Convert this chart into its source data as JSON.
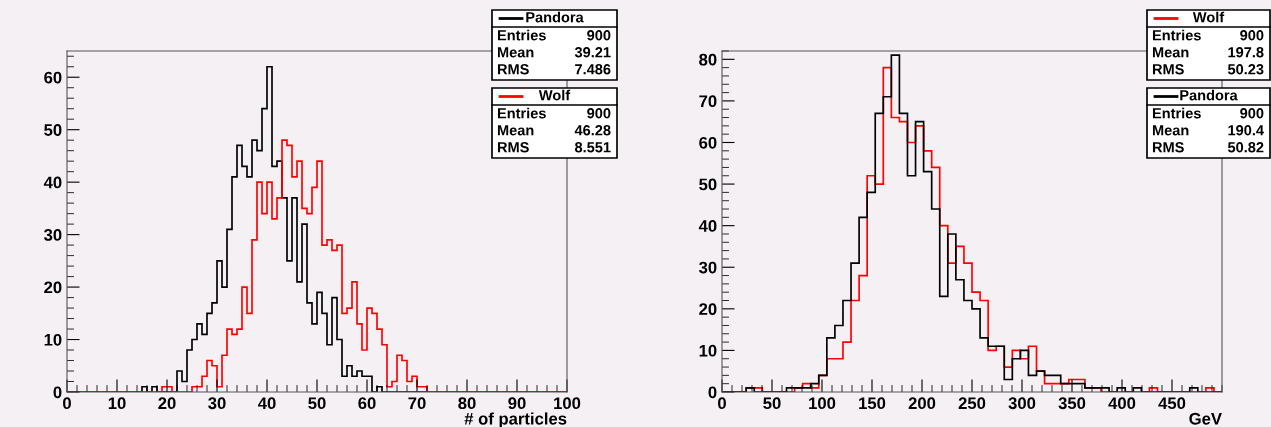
{
  "chart_data": [
    {
      "type": "histogram",
      "xlabel": "# of particles",
      "xlim": [
        0,
        100
      ],
      "xticks": [
        0,
        10,
        20,
        30,
        40,
        50,
        60,
        70,
        80,
        90,
        100
      ],
      "ylim": [
        0,
        65
      ],
      "yticks": [
        0,
        10,
        20,
        30,
        40,
        50,
        60
      ],
      "legend": "top right",
      "bins": [
        0,
        1,
        2,
        3,
        4,
        5,
        6,
        7,
        8,
        9,
        10,
        11,
        12,
        13,
        14,
        15,
        16,
        17,
        18,
        19,
        20,
        21,
        22,
        23,
        24,
        25,
        26,
        27,
        28,
        29,
        30,
        31,
        32,
        33,
        34,
        35,
        36,
        37,
        38,
        39,
        40,
        41,
        42,
        43,
        44,
        45,
        46,
        47,
        48,
        49,
        50,
        51,
        52,
        53,
        54,
        55,
        56,
        57,
        58,
        59,
        60,
        61,
        62,
        63,
        64,
        65,
        66,
        67,
        68,
        69,
        70,
        71,
        72,
        73,
        74,
        75,
        76,
        77,
        78,
        79,
        80,
        81,
        82,
        83,
        84,
        85,
        86,
        87,
        88,
        89,
        90,
        91,
        92,
        93,
        94,
        95,
        96,
        97,
        98,
        99,
        100
      ],
      "series": [
        {
          "name": "Pandora",
          "color": "#000000",
          "values": [
            0,
            0,
            0,
            0,
            0,
            0,
            0,
            0,
            0,
            0,
            0,
            0,
            0,
            0,
            0,
            1,
            0,
            1,
            0,
            0,
            0,
            0,
            4,
            2,
            8,
            10,
            13,
            11,
            15,
            17,
            25,
            20,
            31,
            41,
            47,
            43,
            41,
            48,
            46,
            54,
            62,
            43,
            44,
            37,
            25,
            37,
            21,
            32,
            17,
            13,
            19,
            15,
            9,
            18,
            10,
            3,
            5,
            3,
            4,
            3,
            3,
            0,
            1,
            0,
            0,
            0,
            0,
            0,
            0,
            0,
            0,
            0,
            0,
            0,
            0,
            0,
            0,
            0,
            0,
            0,
            0,
            0,
            0,
            0,
            0,
            0,
            0,
            0,
            0,
            0,
            0,
            0,
            0,
            0,
            0,
            0,
            0,
            0,
            0,
            0
          ]
        },
        {
          "name": "Wolf",
          "color": "#ff0000",
          "values": [
            0,
            0,
            0,
            0,
            0,
            0,
            0,
            0,
            0,
            0,
            0,
            0,
            0,
            0,
            0,
            0,
            0,
            0,
            0,
            1,
            1,
            0,
            0,
            0,
            0,
            1,
            1,
            3,
            6,
            5,
            1,
            7,
            12,
            11,
            12,
            20,
            15,
            29,
            40,
            34,
            40,
            33,
            37,
            48,
            47,
            41,
            44,
            35,
            34,
            39,
            44,
            28,
            29,
            27,
            28,
            15,
            16,
            21,
            13,
            8,
            16,
            15,
            12,
            9,
            1,
            2,
            7,
            6,
            2,
            3,
            1,
            1,
            0,
            0,
            0,
            0,
            0,
            0,
            0,
            0,
            0,
            0,
            0,
            0,
            0,
            0,
            0,
            0,
            0,
            0,
            0,
            0,
            0,
            0,
            0,
            0,
            0,
            0,
            0,
            0
          ]
        }
      ],
      "annotations": [
        "Entries 900",
        "Mean 39.21",
        "RMS 7.486",
        "Entries 900",
        "Mean 46.28",
        "RMS 8.551"
      ]
    },
    {
      "type": "histogram",
      "xlabel": "GeV",
      "xlim": [
        0,
        500
      ],
      "xticks": [
        0,
        50,
        100,
        150,
        200,
        250,
        300,
        350,
        400,
        450
      ],
      "ylim": [
        0,
        82
      ],
      "yticks": [
        0,
        10,
        20,
        30,
        40,
        50,
        60,
        70,
        80
      ],
      "legend": "top right",
      "bins": [
        0,
        8.06,
        16.13,
        24.19,
        32.26,
        40.32,
        48.39,
        56.45,
        64.52,
        72.58,
        80.65,
        88.71,
        96.77,
        104.84,
        112.9,
        120.97,
        129.03,
        137.1,
        145.16,
        153.23,
        161.29,
        169.35,
        177.42,
        185.48,
        193.55,
        201.61,
        209.68,
        217.74,
        225.81,
        233.87,
        241.94,
        250,
        258.06,
        266.13,
        274.19,
        282.26,
        290.32,
        298.39,
        306.45,
        314.52,
        322.58,
        330.65,
        338.71,
        346.77,
        354.84,
        362.9,
        370.97,
        379.03,
        387.1,
        395.16,
        403.23,
        411.29,
        419.35,
        427.42,
        435.48,
        443.55,
        451.61,
        459.68,
        467.74,
        475.81,
        483.87,
        491.94,
        500
      ],
      "series": [
        {
          "name": "Wolf",
          "color": "#ff0000",
          "values": [
            0,
            0,
            0,
            1,
            1,
            0,
            0,
            0,
            0,
            1,
            2,
            1,
            4,
            8,
            8,
            12,
            22,
            28,
            52,
            50,
            78,
            66,
            65,
            60,
            64,
            58,
            54,
            40,
            31,
            35,
            31,
            24,
            22,
            10,
            11,
            6,
            10,
            8,
            11,
            5,
            2,
            2,
            2,
            3,
            3,
            1,
            1,
            0,
            0,
            0,
            0,
            0,
            0,
            1,
            0,
            0,
            0,
            0,
            0,
            0,
            1,
            0
          ]
        },
        {
          "name": "Pandora",
          "color": "#000000",
          "values": [
            0,
            0,
            0,
            1,
            0,
            0,
            0,
            0,
            1,
            1,
            1,
            2,
            4,
            13,
            16,
            22,
            31,
            42,
            48,
            67,
            71,
            81,
            67,
            52,
            65,
            53,
            44,
            23,
            38,
            27,
            22,
            20,
            13,
            11,
            11,
            3,
            8,
            10,
            4,
            5,
            4,
            4,
            2,
            2,
            2,
            1,
            1,
            1,
            0,
            1,
            0,
            1,
            0,
            0,
            0,
            0,
            0,
            0,
            1,
            0,
            0,
            0
          ]
        }
      ],
      "annotations": [
        "Entries 900",
        "Mean 197.8",
        "RMS 50.23",
        "Entries 900",
        "Mean 190.4",
        "RMS 50.82"
      ]
    }
  ]
}
